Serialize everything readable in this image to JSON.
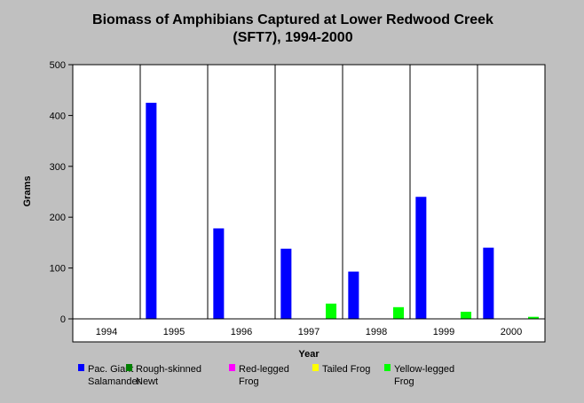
{
  "chart_data": {
    "type": "bar",
    "title": [
      "Biomass of Amphibians Captured at Lower Redwood Creek",
      "(SFT7), 1994-2000"
    ],
    "xlabel": "Year",
    "ylabel": "Grams",
    "ylim": [
      0,
      500
    ],
    "yticks": [
      0,
      100,
      200,
      300,
      400,
      500
    ],
    "categories": [
      "1994",
      "1995",
      "1996",
      "1997",
      "1998",
      "1999",
      "2000"
    ],
    "grid": "vertical category separators",
    "legend_position": "bottom",
    "series": [
      {
        "name": [
          "Pac. Giant",
          "Salamander"
        ],
        "color": "#0000ff",
        "values": [
          0,
          425,
          178,
          138,
          93,
          240,
          140
        ]
      },
      {
        "name": [
          "Rough-skinned",
          "Newt"
        ],
        "color": "#008000",
        "values": [
          0,
          0,
          0,
          0,
          0,
          0,
          0
        ]
      },
      {
        "name": [
          "Red-legged",
          "Frog"
        ],
        "color": "#ff00ff",
        "values": [
          0,
          0,
          0,
          0,
          0,
          0,
          0
        ]
      },
      {
        "name": [
          "Tailed Frog"
        ],
        "color": "#ffff00",
        "values": [
          0,
          0,
          0,
          0,
          0,
          0,
          0
        ]
      },
      {
        "name": [
          "Yellow-legged",
          "Frog"
        ],
        "color": "#00ff00",
        "values": [
          0,
          0,
          0,
          30,
          23,
          14,
          4
        ]
      }
    ]
  }
}
